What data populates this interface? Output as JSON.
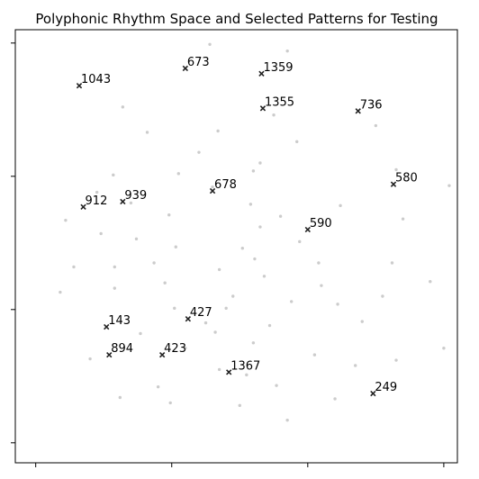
{
  "chart_data": {
    "type": "scatter",
    "title": "Polyphonic Rhythm Space and Selected Patterns for Testing",
    "xlabel": "",
    "ylabel": "",
    "xlim": [
      -0.15,
      3.1
    ],
    "ylim": [
      -0.15,
      3.1
    ],
    "xticks": [
      0,
      1,
      2,
      3
    ],
    "yticks": [
      0,
      1,
      2,
      3
    ],
    "tick_labels_shown": false,
    "grid": false,
    "background_color": "#cccccc",
    "selected_color": "#222222",
    "background_points": [
      [
        1.28,
        2.99
      ],
      [
        1.85,
        2.94
      ],
      [
        0.64,
        2.52
      ],
      [
        1.75,
        2.46
      ],
      [
        2.5,
        2.38
      ],
      [
        0.82,
        2.33
      ],
      [
        1.34,
        2.34
      ],
      [
        2.65,
        2.05
      ],
      [
        3.04,
        1.93
      ],
      [
        0.57,
        2.01
      ],
      [
        0.7,
        1.8
      ],
      [
        1.3,
        1.92
      ],
      [
        1.65,
        2.1
      ],
      [
        1.58,
        1.79
      ],
      [
        1.8,
        1.7
      ],
      [
        2.24,
        1.78
      ],
      [
        2.7,
        1.68
      ],
      [
        0.22,
        1.67
      ],
      [
        0.48,
        1.57
      ],
      [
        1.03,
        1.47
      ],
      [
        1.52,
        1.46
      ],
      [
        1.94,
        1.51
      ],
      [
        0.58,
        1.32
      ],
      [
        0.87,
        1.35
      ],
      [
        1.35,
        1.3
      ],
      [
        1.61,
        1.38
      ],
      [
        2.08,
        1.35
      ],
      [
        2.62,
        1.35
      ],
      [
        0.58,
        1.16
      ],
      [
        1.02,
        1.01
      ],
      [
        1.4,
        1.01
      ],
      [
        1.88,
        1.06
      ],
      [
        2.22,
        1.04
      ],
      [
        2.4,
        0.91
      ],
      [
        0.77,
        0.82
      ],
      [
        1.1,
        0.71
      ],
      [
        1.6,
        0.75
      ],
      [
        2.05,
        0.66
      ],
      [
        2.35,
        0.58
      ],
      [
        0.4,
        0.63
      ],
      [
        1.35,
        0.55
      ],
      [
        1.55,
        0.51
      ],
      [
        0.9,
        0.42
      ],
      [
        1.77,
        0.43
      ],
      [
        2.65,
        0.62
      ],
      [
        0.99,
        0.3
      ],
      [
        1.5,
        0.28
      ],
      [
        2.2,
        0.33
      ],
      [
        1.85,
        0.17
      ],
      [
        0.62,
        0.34
      ],
      [
        0.18,
        1.13
      ],
      [
        3.0,
        0.71
      ],
      [
        2.9,
        1.21
      ],
      [
        1.2,
        2.18
      ],
      [
        1.92,
        2.26
      ],
      [
        1.6,
        2.04
      ],
      [
        0.98,
        1.71
      ],
      [
        1.45,
        1.1
      ],
      [
        1.72,
        0.88
      ],
      [
        1.32,
        0.83
      ],
      [
        0.28,
        1.32
      ],
      [
        0.95,
        1.2
      ],
      [
        1.25,
        0.9
      ],
      [
        2.55,
        1.1
      ],
      [
        1.65,
        1.62
      ],
      [
        0.74,
        1.53
      ],
      [
        2.1,
        1.18
      ],
      [
        1.05,
        2.02
      ],
      [
        0.45,
        1.88
      ],
      [
        1.68,
        1.25
      ]
    ],
    "selected_points": [
      {
        "label": "1043",
        "x": 0.32,
        "y": 2.68
      },
      {
        "label": "673",
        "x": 1.1,
        "y": 2.81
      },
      {
        "label": "1359",
        "x": 1.66,
        "y": 2.77
      },
      {
        "label": "1355",
        "x": 1.67,
        "y": 2.51
      },
      {
        "label": "736",
        "x": 2.37,
        "y": 2.49
      },
      {
        "label": "580",
        "x": 2.63,
        "y": 1.94
      },
      {
        "label": "678",
        "x": 1.3,
        "y": 1.89
      },
      {
        "label": "939",
        "x": 0.64,
        "y": 1.81
      },
      {
        "label": "912",
        "x": 0.35,
        "y": 1.77
      },
      {
        "label": "590",
        "x": 2.0,
        "y": 1.6
      },
      {
        "label": "427",
        "x": 1.12,
        "y": 0.93
      },
      {
        "label": "143",
        "x": 0.52,
        "y": 0.87
      },
      {
        "label": "894",
        "x": 0.54,
        "y": 0.66
      },
      {
        "label": "423",
        "x": 0.93,
        "y": 0.66
      },
      {
        "label": "1367",
        "x": 1.42,
        "y": 0.53
      },
      {
        "label": "249",
        "x": 2.48,
        "y": 0.37
      }
    ]
  }
}
